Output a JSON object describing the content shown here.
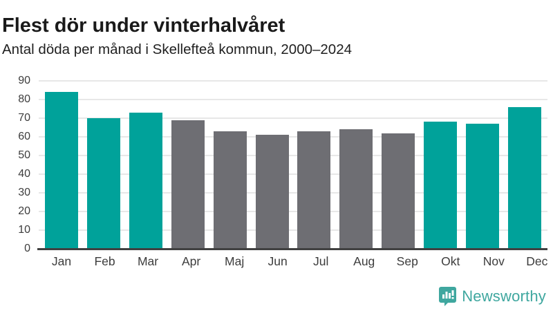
{
  "header": {
    "title": "Flest dör under vinterhalvåret",
    "subtitle": "Antal döda per månad i Skellefteå kommun, 2000–2024"
  },
  "chart_data": {
    "type": "bar",
    "title": "Flest dör under vinterhalvåret",
    "subtitle": "Antal döda per månad i Skellefteå kommun, 2000–2024",
    "categories": [
      "Jan",
      "Feb",
      "Mar",
      "Apr",
      "Maj",
      "Jun",
      "Jul",
      "Aug",
      "Sep",
      "Okt",
      "Nov",
      "Dec"
    ],
    "values": [
      84,
      70,
      73,
      69,
      63,
      61,
      63,
      64,
      62,
      68,
      67,
      76
    ],
    "bar_groups": [
      "winter",
      "winter",
      "winter",
      "summer",
      "summer",
      "summer",
      "summer",
      "summer",
      "summer",
      "winter",
      "winter",
      "winter"
    ],
    "palette": {
      "winter": "#00a29a",
      "summer": "#6e6e73"
    },
    "xlabel": "",
    "ylabel": "",
    "ylim": [
      0,
      90
    ],
    "yticks": [
      0,
      10,
      20,
      30,
      40,
      50,
      60,
      70,
      80,
      90
    ],
    "grid": true,
    "legend": false,
    "gridline_color": "#e7e7e7",
    "axis_line_color": "#404040"
  },
  "footer": {
    "brand": "Newsworthy",
    "logo_icon": "bar-chart-speech-bubble-icon",
    "brand_color": "#3fa79f"
  }
}
